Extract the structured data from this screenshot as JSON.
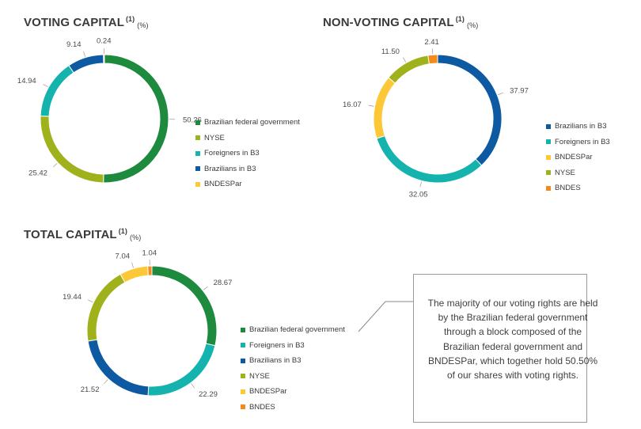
{
  "colors": {
    "green": "#1d8a3e",
    "olive": "#9fb11b",
    "teal": "#14b3ad",
    "blue": "#0d5aa2",
    "yellow": "#fcc838",
    "orange": "#f28a1c"
  },
  "chart_data": [
    {
      "type": "pie",
      "title": "VOTING CAPITAL",
      "footnote": "(1)",
      "unit": "(%)",
      "slices": [
        {
          "label": "Brazilian federal government",
          "value": 50.26,
          "color": "#1d8a3e"
        },
        {
          "label": "NYSE",
          "value": 25.42,
          "color": "#9fb11b"
        },
        {
          "label": "Foreigners in B3",
          "value": 14.94,
          "color": "#14b3ad"
        },
        {
          "label": "Brazilians in B3",
          "value": 9.14,
          "color": "#0d5aa2"
        },
        {
          "label": "BNDESPar",
          "value": 0.24,
          "color": "#fcc838"
        }
      ]
    },
    {
      "type": "pie",
      "title": "NON-VOTING CAPITAL",
      "footnote": "(1)",
      "unit": "(%)",
      "slices": [
        {
          "label": "Brazilians in B3",
          "value": 37.97,
          "color": "#0d5aa2"
        },
        {
          "label": "Foreigners in B3",
          "value": 32.05,
          "color": "#14b3ad"
        },
        {
          "label": "BNDESPar",
          "value": 16.07,
          "color": "#fcc838"
        },
        {
          "label": "NYSE",
          "value": 11.5,
          "color": "#9fb11b"
        },
        {
          "label": "BNDES",
          "value": 2.41,
          "color": "#f28a1c"
        }
      ]
    },
    {
      "type": "pie",
      "title": "TOTAL CAPITAL",
      "footnote": "(1)",
      "unit": "(%)",
      "slices": [
        {
          "label": "Brazilian federal government",
          "value": 28.67,
          "color": "#1d8a3e"
        },
        {
          "label": "Foreigners in B3",
          "value": 22.29,
          "color": "#14b3ad"
        },
        {
          "label": "Brazilians in B3",
          "value": 21.52,
          "color": "#0d5aa2"
        },
        {
          "label": "NYSE",
          "value": 19.44,
          "color": "#9fb11b"
        },
        {
          "label": "BNDESPar",
          "value": 7.04,
          "color": "#fcc838"
        },
        {
          "label": "BNDES",
          "value": 1.04,
          "color": "#f28a1c"
        }
      ]
    }
  ],
  "callout": {
    "text": "The majority of our voting rights are held by the Brazilian federal government through a block composed of the Brazilian federal government and BNDESPar, which together hold 50.50% of our shares with voting rights."
  }
}
